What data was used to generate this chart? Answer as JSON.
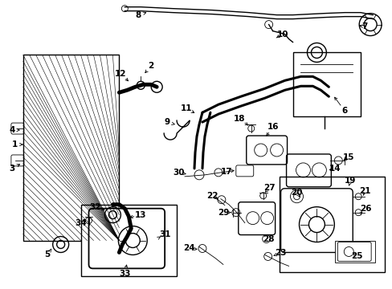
{
  "bg_color": "#ffffff",
  "fig_width": 4.89,
  "fig_height": 3.6,
  "dpi": 100,
  "black": "#000000",
  "lw_thin": 0.6,
  "lw_med": 1.0,
  "lw_thick": 2.2,
  "lw_hose": 3.5
}
